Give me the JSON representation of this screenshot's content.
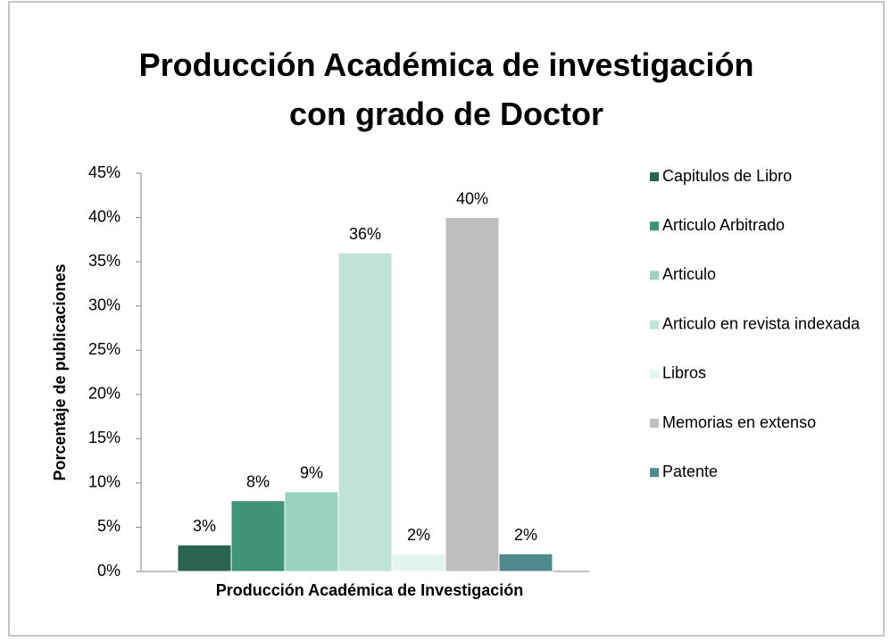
{
  "chart_data": {
    "type": "bar",
    "title": "Producción Académica de investigación con grado de Doctor",
    "x_label": "Producción Académica de Investigación",
    "y_label": "Porcentaje de publicaciones",
    "ylim": [
      0,
      45
    ],
    "yticks": [
      {
        "value": 0,
        "label": "0%"
      },
      {
        "value": 5,
        "label": "5%"
      },
      {
        "value": 10,
        "label": "10%"
      },
      {
        "value": 15,
        "label": "15%"
      },
      {
        "value": 20,
        "label": "20%"
      },
      {
        "value": 25,
        "label": "25%"
      },
      {
        "value": 30,
        "label": "30%"
      },
      {
        "value": 35,
        "label": "35%"
      },
      {
        "value": 40,
        "label": "40%"
      },
      {
        "value": 45,
        "label": "45%"
      }
    ],
    "legend": "right",
    "series": [
      {
        "name": "Capitulos de Libro",
        "color": "#2a6350",
        "values": [
          3
        ],
        "value_labels": [
          "3%"
        ]
      },
      {
        "name": "Articulo Arbitrado",
        "color": "#3f9378",
        "values": [
          8
        ],
        "value_labels": [
          "8%"
        ]
      },
      {
        "name": "Articulo",
        "color": "#99d3c0",
        "values": [
          9
        ],
        "value_labels": [
          "9%"
        ]
      },
      {
        "name": "Articulo en revista indexada",
        "color": "#bfe3d7",
        "values": [
          36
        ],
        "value_labels": [
          "36%"
        ]
      },
      {
        "name": "Libros",
        "color": "#e6f4ef",
        "values": [
          2
        ],
        "value_labels": [
          "2%"
        ]
      },
      {
        "name": "Memorias en extenso",
        "color": "#bfbfbf",
        "values": [
          40
        ],
        "value_labels": [
          "40%"
        ]
      },
      {
        "name": "Patente",
        "color": "#4f8a8f",
        "values": [
          2
        ],
        "value_labels": [
          "2%"
        ]
      }
    ]
  }
}
